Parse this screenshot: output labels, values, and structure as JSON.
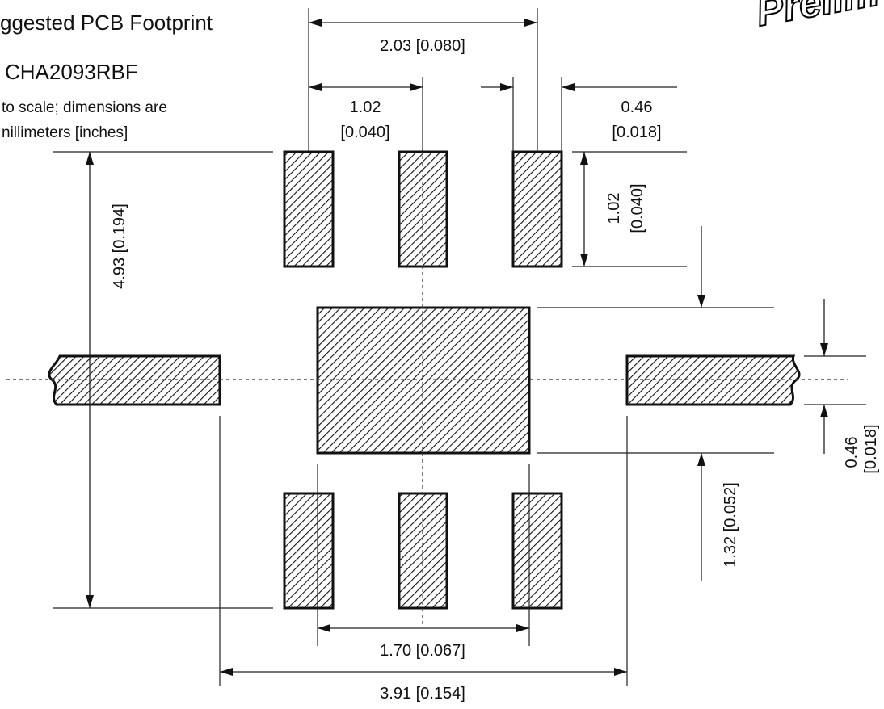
{
  "title": "ggested PCB Footprint",
  "part": "CHA2093RBF",
  "note_line1": "to scale; dimensions are",
  "note_line2": "nillimeters [inches]",
  "watermark": "Prelim",
  "dimensions": {
    "outer_pad_pitch": "2.03 [0.080]",
    "pad_pitch_val": "1.02",
    "pad_pitch_in": "[0.040]",
    "pad_width_val": "0.46",
    "pad_width_in": "[0.018]",
    "pad_height_val": "1.02",
    "pad_height_in": "[0.040]",
    "overall_height": "4.93 [0.194]",
    "center_pad_height": "1.32 [0.052]",
    "side_pad_width_val": "0.46",
    "side_pad_width_in": "[0.018]",
    "center_pad_width": "1.70 [0.067]",
    "overall_width": "3.91 [0.154]"
  },
  "colors": {
    "ink": "#111111",
    "background": "#ffffff"
  }
}
